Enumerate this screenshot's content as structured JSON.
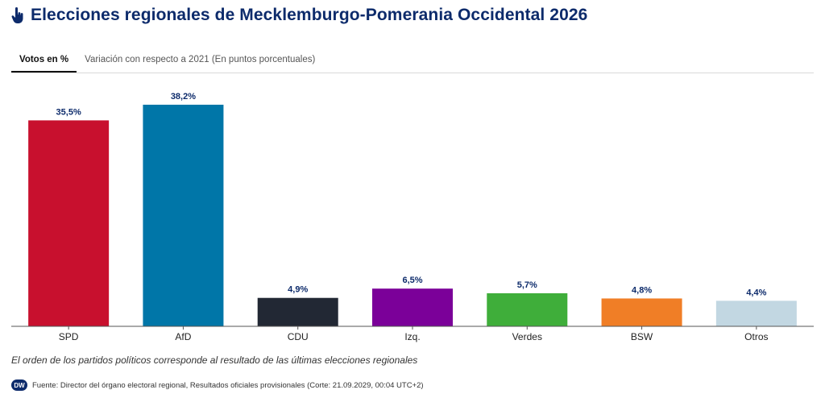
{
  "header": {
    "title": "Elecciones regionales de Mecklemburgo-Pomerania Occidental 2026"
  },
  "tabs": [
    {
      "label": "Votos en %",
      "active": true
    },
    {
      "label": "Variación con respecto a 2021 (En puntos porcentuales)",
      "active": false
    }
  ],
  "chart_data": {
    "type": "bar",
    "categories": [
      "SPD",
      "AfD",
      "CDU",
      "Izq.",
      "Verdes",
      "BSW",
      "Otros"
    ],
    "values": [
      35.5,
      38.2,
      4.9,
      6.5,
      5.7,
      4.8,
      4.4
    ],
    "value_labels": [
      "35,5%",
      "38,2%",
      "4,9%",
      "6,5%",
      "5,7%",
      "4,8%",
      "4,4%"
    ],
    "colors": [
      "#c8102e",
      "#0076a8",
      "#222834",
      "#7b0099",
      "#3fae3a",
      "#f07e26",
      "#c2d7e2"
    ],
    "ylim": [
      0,
      40
    ],
    "grid": false,
    "legend": "none"
  },
  "footer": {
    "note": "El orden de los partidos políticos corresponde al resultado de las últimas elecciones regionales",
    "logo_text": "DW",
    "source": "Fuente: Director del órgano electoral regional, Resultados oficiales provisionales (Corte: 21.09.2029, 00:04 UTC+2)"
  },
  "colors": {
    "title": "#0d2b6b",
    "value_label": "#0d2b6b",
    "axis": "#555555"
  }
}
